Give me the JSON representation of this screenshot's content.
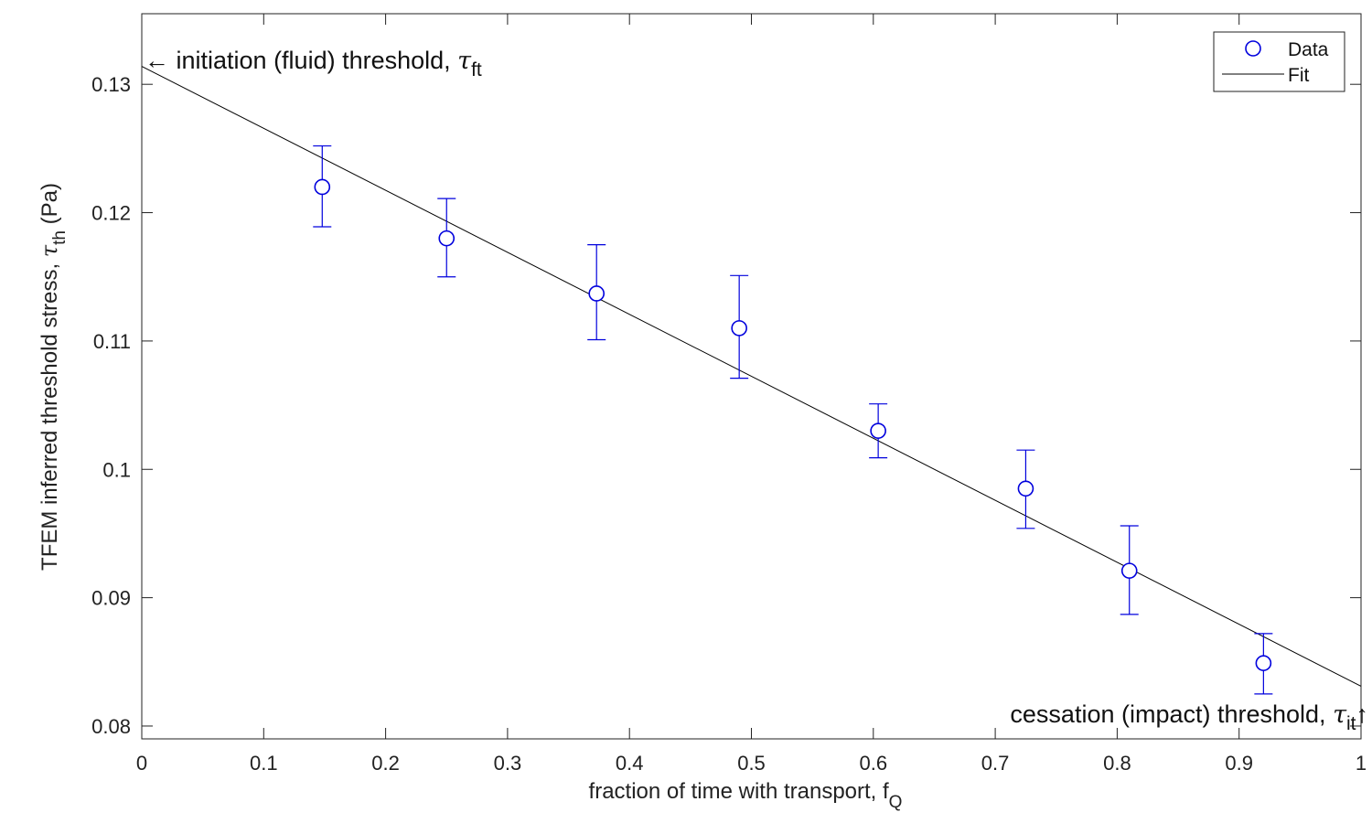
{
  "chart_data": {
    "type": "scatter",
    "xlabel": "fraction of time with transport, f",
    "xlabel_sub": "Q",
    "ylabel": "TFEM inferred threshold stress, ",
    "ylabel_sym": "τ",
    "ylabel_sub": "th",
    "ylabel_unit": " (Pa)",
    "xlim": [
      0,
      1
    ],
    "ylim": [
      0.079,
      0.1355
    ],
    "xticks": [
      0,
      0.1,
      0.2,
      0.3,
      0.4,
      0.5,
      0.6,
      0.7,
      0.8,
      0.9,
      1
    ],
    "xtick_labels": [
      "0",
      "0.1",
      "0.2",
      "0.3",
      "0.4",
      "0.5",
      "0.6",
      "0.7",
      "0.8",
      "0.9",
      "1"
    ],
    "yticks": [
      0.08,
      0.09,
      0.1,
      0.11,
      0.12,
      0.13
    ],
    "ytick_labels": [
      "0.08",
      "0.09",
      "0.1",
      "0.11",
      "0.12",
      "0.13"
    ],
    "grid": false,
    "legend_position": "top-right",
    "series": [
      {
        "name": "Data",
        "kind": "scatter-errorbar",
        "color": "#0000dd",
        "x": [
          0.148,
          0.25,
          0.373,
          0.49,
          0.604,
          0.725,
          0.81,
          0.92
        ],
        "y": [
          0.122,
          0.118,
          0.1137,
          0.111,
          0.103,
          0.0985,
          0.0921,
          0.0849
        ],
        "err_low": [
          0.1189,
          0.115,
          0.1101,
          0.1071,
          0.1009,
          0.0954,
          0.0887,
          0.0825
        ],
        "err_high": [
          0.1252,
          0.1211,
          0.1175,
          0.1151,
          0.1051,
          0.1015,
          0.0956,
          0.0872
        ]
      },
      {
        "name": "Fit",
        "kind": "line",
        "color": "#000000",
        "x": [
          0,
          1
        ],
        "y": [
          0.1314,
          0.0831
        ]
      }
    ],
    "annotations": [
      {
        "id": "fluid",
        "arrow": "←",
        "text": " initiation (fluid) threshold, ",
        "sym": "τ",
        "sub": "ft"
      },
      {
        "id": "impact",
        "text": "cessation (impact) threshold, ",
        "sym": "τ",
        "sub": "it",
        "arrow": "↑"
      }
    ]
  }
}
